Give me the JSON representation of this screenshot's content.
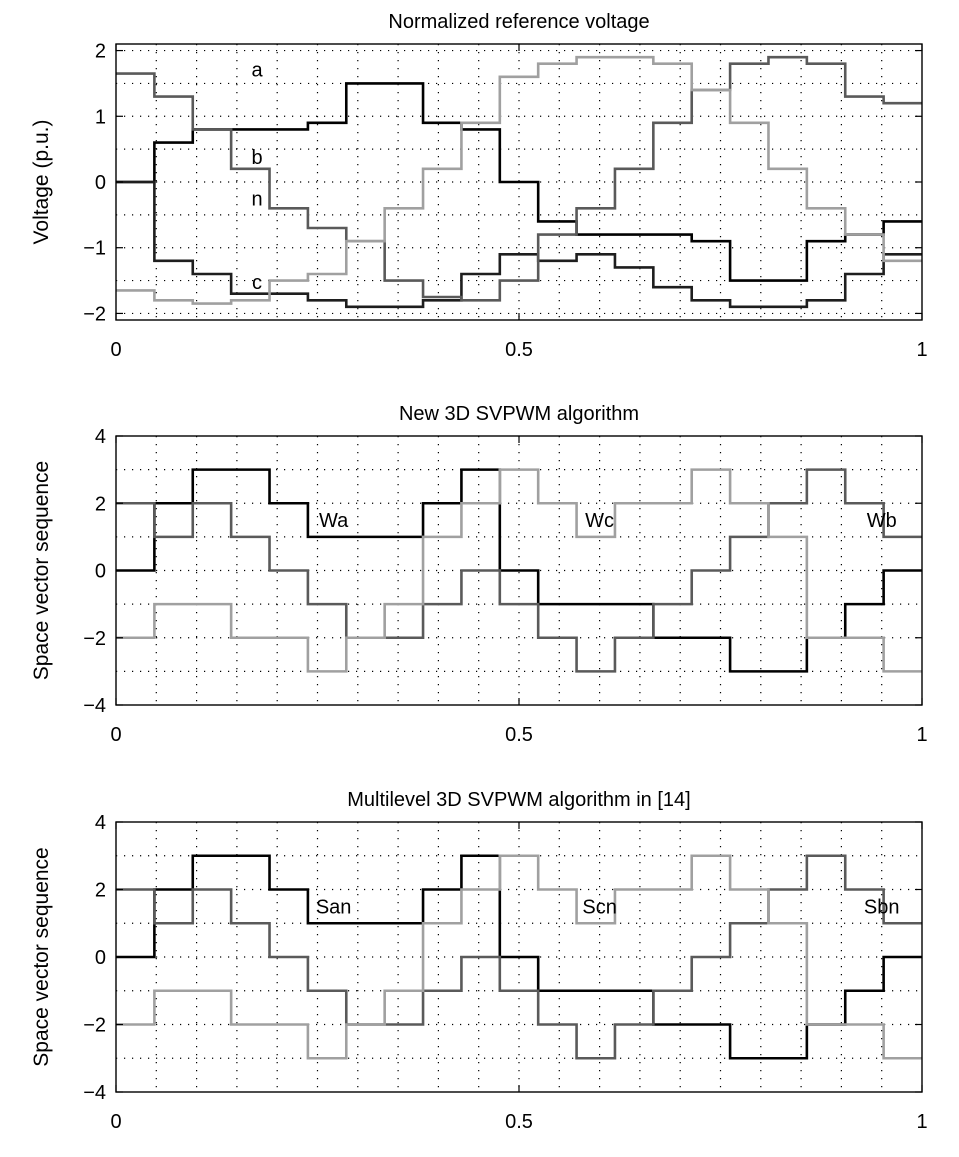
{
  "chart_data": [
    {
      "type": "line",
      "title": "Normalized reference voltage",
      "xlabel": "",
      "ylabel": "Voltage (p.u.)",
      "xlim": [
        0,
        1
      ],
      "ylim": [
        -2.1,
        2.1
      ],
      "xticks": [
        0,
        0.5,
        1
      ],
      "xtick_labels": [
        "0",
        "0.5",
        "1"
      ],
      "yticks": [
        2,
        1,
        0,
        -1,
        -2
      ],
      "ytick_labels": [
        "2",
        "1",
        "0",
        "−1",
        "−2"
      ],
      "grid": true,
      "annotations": [
        {
          "text": "a",
          "x": 0.175,
          "y": 1.71
        },
        {
          "text": "b",
          "x": 0.175,
          "y": 0.38
        },
        {
          "text": "n",
          "x": 0.175,
          "y": -0.25
        },
        {
          "text": "c",
          "x": 0.175,
          "y": -1.52
        }
      ],
      "series": [
        {
          "color": "#000000",
          "steps": [
            0,
            0.6,
            0.8,
            0.8,
            0.8,
            0.9,
            1.5,
            1.5,
            0.9,
            0.8,
            0,
            -0.6,
            -0.8,
            -0.8,
            -0.8,
            -0.9,
            -1.5,
            -1.5,
            -0.9,
            -0.8,
            -0.6
          ]
        },
        {
          "color": "#1e1e1e",
          "steps": [
            0,
            -1.2,
            -1.4,
            -1.7,
            -1.7,
            -1.8,
            -1.9,
            -1.9,
            -1.8,
            -1.4,
            -1.1,
            -1.2,
            -1.1,
            -1.3,
            -1.6,
            -1.8,
            -1.9,
            -1.9,
            -1.8,
            -1.4,
            -1.1
          ]
        },
        {
          "color": "#5a5a5a",
          "steps": [
            1.65,
            1.3,
            0.8,
            0.2,
            -0.4,
            -0.7,
            -0.9,
            -1.5,
            -1.75,
            -1.8,
            -1.5,
            -0.8,
            -0.4,
            0.2,
            0.9,
            1.4,
            1.8,
            1.9,
            1.8,
            1.3,
            1.2
          ]
        },
        {
          "color": "#a0a0a0",
          "steps": [
            -1.65,
            -1.8,
            -1.85,
            -1.8,
            -1.5,
            -1.4,
            -0.9,
            -0.4,
            0.2,
            0.9,
            1.6,
            1.8,
            1.9,
            1.9,
            1.8,
            1.4,
            0.9,
            0.2,
            -0.4,
            -0.8,
            -1.2
          ]
        }
      ]
    },
    {
      "type": "line",
      "title": "New 3D SVPWM algorithm",
      "xlabel": "",
      "ylabel": "Space vector sequence",
      "xlim": [
        0,
        1
      ],
      "ylim": [
        -4,
        4
      ],
      "xticks": [
        0,
        0.5,
        1
      ],
      "xtick_labels": [
        "0",
        "0.5",
        "1"
      ],
      "yticks": [
        4,
        2,
        0,
        -2,
        -4
      ],
      "ytick_labels": [
        "4",
        "2",
        "0",
        "−2",
        "−4"
      ],
      "grid": true,
      "annotations": [
        {
          "text": "Wa",
          "x": 0.27,
          "y": 1.5
        },
        {
          "text": "Wc",
          "x": 0.6,
          "y": 1.5
        },
        {
          "text": "Wb",
          "x": 0.95,
          "y": 1.5
        }
      ],
      "series": [
        {
          "color": "#000000",
          "steps": [
            0,
            2,
            3,
            3,
            2,
            1,
            1,
            1,
            2,
            3,
            0,
            -1,
            -1,
            -1,
            -2,
            -2,
            -3,
            -3,
            -2,
            -1,
            0
          ]
        },
        {
          "color": "#5a5a5a",
          "steps": [
            2,
            1,
            2,
            1,
            0,
            -1,
            -2,
            -2,
            -1,
            0,
            -1,
            -2,
            -3,
            -2,
            -1,
            0,
            1,
            2,
            3,
            2,
            1
          ]
        },
        {
          "color": "#a0a0a0",
          "steps": [
            -2,
            -1,
            -1,
            -2,
            -2,
            -3,
            -2,
            -1,
            1,
            2,
            3,
            2,
            1,
            2,
            2,
            3,
            2,
            1,
            -2,
            -2,
            -3
          ]
        }
      ]
    },
    {
      "type": "line",
      "title": "Multilevel 3D SVPWM algorithm in [14]",
      "xlabel": "",
      "ylabel": "Space vector sequence",
      "xlim": [
        0,
        1
      ],
      "ylim": [
        -4,
        4
      ],
      "xticks": [
        0,
        0.5,
        1
      ],
      "xtick_labels": [
        "0",
        "0.5",
        "1"
      ],
      "yticks": [
        4,
        2,
        0,
        -2,
        -4
      ],
      "ytick_labels": [
        "4",
        "2",
        "0",
        "−2",
        "−4"
      ],
      "grid": true,
      "annotations": [
        {
          "text": "San",
          "x": 0.27,
          "y": 1.5
        },
        {
          "text": "Scn",
          "x": 0.6,
          "y": 1.5
        },
        {
          "text": "Sbn",
          "x": 0.95,
          "y": 1.5
        }
      ],
      "series": [
        {
          "color": "#000000",
          "steps": [
            0,
            2,
            3,
            3,
            2,
            1,
            1,
            1,
            2,
            3,
            0,
            -1,
            -1,
            -1,
            -2,
            -2,
            -3,
            -3,
            -2,
            -1,
            0
          ]
        },
        {
          "color": "#5a5a5a",
          "steps": [
            2,
            1,
            2,
            1,
            0,
            -1,
            -2,
            -2,
            -1,
            0,
            -1,
            -2,
            -3,
            -2,
            -1,
            0,
            1,
            2,
            3,
            2,
            1
          ]
        },
        {
          "color": "#a0a0a0",
          "steps": [
            -2,
            -1,
            -1,
            -2,
            -2,
            -3,
            -2,
            -1,
            1,
            2,
            3,
            2,
            1,
            2,
            2,
            3,
            2,
            1,
            -2,
            -2,
            -3
          ]
        }
      ]
    }
  ]
}
